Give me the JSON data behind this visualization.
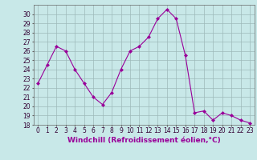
{
  "x": [
    0,
    1,
    2,
    3,
    4,
    5,
    6,
    7,
    8,
    9,
    10,
    11,
    12,
    13,
    14,
    15,
    16,
    17,
    18,
    19,
    20,
    21,
    22,
    23
  ],
  "y": [
    22.5,
    24.5,
    26.5,
    26.0,
    24.0,
    22.5,
    21.0,
    20.2,
    21.5,
    24.0,
    26.0,
    26.5,
    27.5,
    29.5,
    30.5,
    29.5,
    25.5,
    19.3,
    19.5,
    18.5,
    19.3,
    19.0,
    18.5,
    18.2
  ],
  "line_color": "#990099",
  "marker": "D",
  "marker_size": 2,
  "bg_color": "#c8e8e8",
  "grid_color": "#9dbaba",
  "xlabel": "Windchill (Refroidissement éolien,°C)",
  "ylim": [
    18,
    31
  ],
  "xlim": [
    -0.5,
    23.5
  ],
  "yticks": [
    18,
    19,
    20,
    21,
    22,
    23,
    24,
    25,
    26,
    27,
    28,
    29,
    30
  ],
  "xticks": [
    0,
    1,
    2,
    3,
    4,
    5,
    6,
    7,
    8,
    9,
    10,
    11,
    12,
    13,
    14,
    15,
    16,
    17,
    18,
    19,
    20,
    21,
    22,
    23
  ],
  "tick_fontsize": 5.5,
  "xlabel_fontsize": 6.5
}
